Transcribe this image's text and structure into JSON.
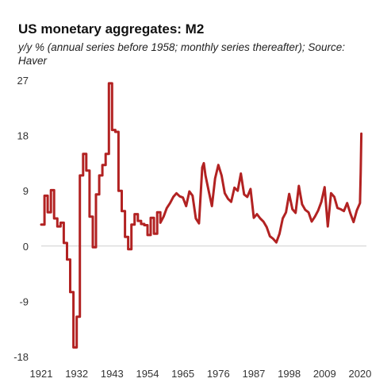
{
  "title": "US monetary aggregates: M2",
  "subtitle": "y/y % (annual series before 1958; monthly series thereafter); Source: Haver",
  "chart_data": {
    "type": "line",
    "title": "US monetary aggregates: M2",
    "subtitle": "y/y % (annual series before 1958; monthly series thereafter); Source: Haver",
    "xlabel": "",
    "ylabel": "",
    "xlim": [
      1921,
      2021
    ],
    "ylim": [
      -18,
      27
    ],
    "x_ticks": [
      "1921",
      "1932",
      "1943",
      "1954",
      "1965",
      "1976",
      "1987",
      "1998",
      "2009",
      "2020"
    ],
    "y_ticks": [
      "27",
      "18",
      "9",
      "0",
      "-9",
      "-18"
    ],
    "zero_line": true,
    "grid": false,
    "legend": "none",
    "line_color": "#b22222",
    "series": [
      {
        "values": [
          [
            1921,
            3.5
          ],
          [
            1922,
            3.5
          ],
          [
            1922,
            8.2
          ],
          [
            1923,
            8.2
          ],
          [
            1923,
            5.5
          ],
          [
            1924,
            5.5
          ],
          [
            1924,
            9.1
          ],
          [
            1925,
            9.1
          ],
          [
            1925,
            4.5
          ],
          [
            1926,
            4.5
          ],
          [
            1926,
            3.2
          ],
          [
            1927,
            3.2
          ],
          [
            1927,
            3.8
          ],
          [
            1928,
            3.8
          ],
          [
            1928,
            0.5
          ],
          [
            1929,
            0.5
          ],
          [
            1929,
            -2.2
          ],
          [
            1930,
            -2.2
          ],
          [
            1930,
            -7.5
          ],
          [
            1931,
            -7.5
          ],
          [
            1931,
            -16.5
          ],
          [
            1932,
            -16.5
          ],
          [
            1932,
            -11.5
          ],
          [
            1933,
            -11.5
          ],
          [
            1933,
            11.5
          ],
          [
            1934,
            11.5
          ],
          [
            1934,
            15.0
          ],
          [
            1935,
            15.0
          ],
          [
            1935,
            12.3
          ],
          [
            1936,
            12.3
          ],
          [
            1936,
            4.8
          ],
          [
            1937,
            4.8
          ],
          [
            1937,
            -0.2
          ],
          [
            1938,
            -0.2
          ],
          [
            1938,
            8.4
          ],
          [
            1939,
            8.4
          ],
          [
            1939,
            11.5
          ],
          [
            1940,
            11.5
          ],
          [
            1940,
            13.2
          ],
          [
            1941,
            13.2
          ],
          [
            1941,
            15.0
          ],
          [
            1942,
            15.0
          ],
          [
            1942,
            26.5
          ],
          [
            1943,
            26.5
          ],
          [
            1943,
            18.9
          ],
          [
            1944,
            18.9
          ],
          [
            1944,
            18.6
          ],
          [
            1945,
            18.6
          ],
          [
            1945,
            9.0
          ],
          [
            1946,
            9.0
          ],
          [
            1946,
            5.7
          ],
          [
            1947,
            5.7
          ],
          [
            1947,
            1.5
          ],
          [
            1948,
            1.5
          ],
          [
            1948,
            -0.5
          ],
          [
            1949,
            -0.5
          ],
          [
            1949,
            3.5
          ],
          [
            1950,
            3.5
          ],
          [
            1950,
            5.2
          ],
          [
            1951,
            5.2
          ],
          [
            1951,
            4.1
          ],
          [
            1952,
            4.1
          ],
          [
            1952,
            3.6
          ],
          [
            1953,
            3.6
          ],
          [
            1953,
            3.4
          ],
          [
            1954,
            3.4
          ],
          [
            1954,
            1.8
          ],
          [
            1955,
            1.8
          ],
          [
            1955,
            4.6
          ],
          [
            1956,
            4.6
          ],
          [
            1956,
            2.0
          ],
          [
            1957,
            2.0
          ],
          [
            1957,
            5.5
          ],
          [
            1958,
            5.5
          ],
          [
            1958,
            3.8
          ],
          [
            1959,
            4.8
          ],
          [
            1960,
            6.2
          ],
          [
            1961,
            7.0
          ],
          [
            1962,
            8.0
          ],
          [
            1963,
            8.6
          ],
          [
            1964,
            8.1
          ],
          [
            1965,
            7.9
          ],
          [
            1966,
            6.5
          ],
          [
            1967,
            8.9
          ],
          [
            1968,
            8.2
          ],
          [
            1969,
            4.5
          ],
          [
            1970,
            3.7
          ],
          [
            1971,
            12.8
          ],
          [
            1971.5,
            13.5
          ],
          [
            1972,
            11.5
          ],
          [
            1973,
            9.0
          ],
          [
            1974,
            6.5
          ],
          [
            1975,
            11.0
          ],
          [
            1976,
            13.2
          ],
          [
            1977,
            11.5
          ],
          [
            1978,
            8.6
          ],
          [
            1979,
            7.7
          ],
          [
            1980,
            7.2
          ],
          [
            1981,
            9.5
          ],
          [
            1982,
            9.0
          ],
          [
            1983,
            11.8
          ],
          [
            1984,
            8.4
          ],
          [
            1985,
            8.0
          ],
          [
            1986,
            9.3
          ],
          [
            1987,
            4.6
          ],
          [
            1988,
            5.2
          ],
          [
            1989,
            4.5
          ],
          [
            1990,
            4.0
          ],
          [
            1991,
            3.1
          ],
          [
            1992,
            1.6
          ],
          [
            1993,
            1.2
          ],
          [
            1994,
            0.6
          ],
          [
            1995,
            2.0
          ],
          [
            1996,
            4.5
          ],
          [
            1997,
            5.5
          ],
          [
            1998,
            8.5
          ],
          [
            1999,
            6.0
          ],
          [
            2000,
            5.4
          ],
          [
            2001,
            9.8
          ],
          [
            2002,
            6.8
          ],
          [
            2003,
            5.9
          ],
          [
            2004,
            5.5
          ],
          [
            2005,
            4.0
          ],
          [
            2006,
            4.8
          ],
          [
            2007,
            5.8
          ],
          [
            2008,
            7.2
          ],
          [
            2009,
            9.6
          ],
          [
            2010,
            3.2
          ],
          [
            2011,
            8.6
          ],
          [
            2012,
            8.0
          ],
          [
            2013,
            6.2
          ],
          [
            2014,
            6.0
          ],
          [
            2015,
            5.7
          ],
          [
            2016,
            7.0
          ],
          [
            2017,
            5.3
          ],
          [
            2018,
            3.9
          ],
          [
            2019,
            5.8
          ],
          [
            2020,
            7.0
          ],
          [
            2020.2,
            12.0
          ],
          [
            2020.4,
            18.3
          ]
        ]
      }
    ]
  }
}
